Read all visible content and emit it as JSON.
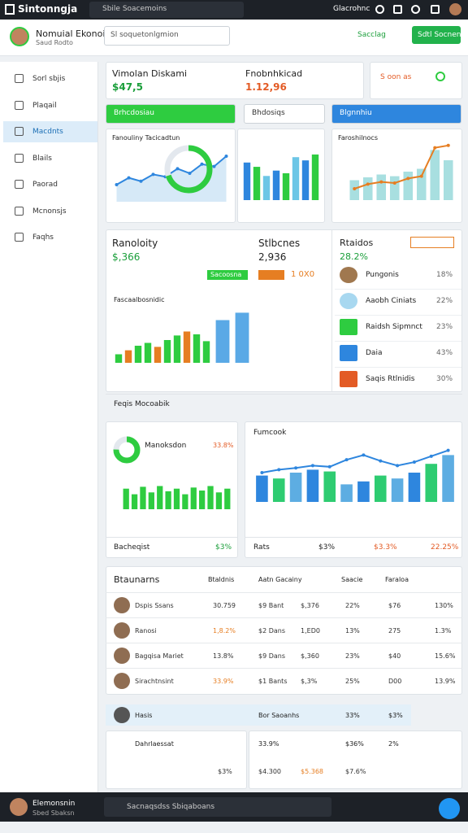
{
  "topbar": {
    "brand": "Sintonngja",
    "search": "Sbile Soacemoins",
    "user": "Glacrohnc"
  },
  "header": {
    "name": "Nomuial Ekonoin",
    "role": "Saud Rodto",
    "search": "Sl soquetonlgmion",
    "link": "Sacclag",
    "button": "Sdtl Socnen"
  },
  "sidebar": [
    "Sorl sbjis",
    "Plaqail",
    "Macdnts",
    "Blails",
    "Paorad",
    "Mcnonsjs",
    "Faqhs"
  ],
  "kpis": [
    {
      "label": "Vimolan Diskami",
      "value": "$47,5"
    },
    {
      "label": "Fnobnhkicad",
      "value": "1.12,96"
    },
    {
      "label": "S oon as"
    }
  ],
  "filters": [
    "Brhcdosiau",
    "Bhdosiqs",
    "Blgnnhiu"
  ],
  "charts": {
    "a": {
      "title": "Fanouliny Tacicadtun",
      "ylim": [
        0,
        100
      ],
      "values": [
        30,
        42,
        36,
        48,
        44,
        58,
        50,
        66,
        62,
        80
      ],
      "color": "#2e86de",
      "donut": 70,
      "donut_color": "#2ecc40"
    },
    "b": {
      "ylim": [
        0,
        100
      ],
      "values": [
        70,
        62,
        45,
        55,
        50,
        80,
        74,
        85
      ],
      "colors": [
        "#2e86de",
        "#2ecc40",
        "#6cc6e6"
      ]
    },
    "c": {
      "title": "Faroshilnocs",
      "ylim": [
        0,
        100
      ],
      "values": [
        35,
        40,
        45,
        42,
        50,
        55,
        88,
        70
      ],
      "color": "#a8dfe0",
      "line": [
        20,
        28,
        32,
        30,
        38,
        42,
        92,
        96
      ],
      "line_color": "#e67e22"
    },
    "d": {
      "title": "Fascaalbosnidic",
      "ylim": [
        0,
        100
      ],
      "values": [
        15,
        22,
        30,
        35,
        28,
        40,
        48,
        55,
        50,
        38
      ],
      "colors": [
        "#2ecc40",
        "#e67e22",
        "#2ecc40"
      ],
      "side": [
        75,
        88
      ],
      "side_color": "#5aa9e6"
    },
    "e": {
      "title": "Manoksdon",
      "ylim": [
        0,
        100
      ],
      "values": [
        55,
        40,
        60,
        45,
        62,
        48,
        55,
        40,
        58,
        50,
        62,
        45,
        55
      ],
      "color": "#2ecc40",
      "donut": 75,
      "donut_color": "#2ecc40"
    },
    "f": {
      "title": "Fumcook",
      "ylim": [
        0,
        100
      ],
      "values": [
        45,
        40,
        50,
        55,
        52,
        30,
        35,
        45,
        40,
        50,
        65,
        80
      ],
      "colors": [
        "#2e86de",
        "#2ecc71",
        "#5dade2"
      ],
      "line": [
        50,
        55,
        58,
        62,
        60,
        72,
        80,
        70,
        62,
        68,
        78,
        88
      ],
      "line_color": "#2e86de"
    }
  },
  "overview": {
    "left_title": "Ranoloity",
    "left_value": "$,366",
    "mid_title": "Stlbcnes",
    "mid_value": "2,936",
    "badge1": "Sacoosna",
    "badge2": "1 0X0",
    "list_title": "Rtaidos",
    "list_value": "28.2%",
    "footer": "Feqis Mocoabik",
    "items": [
      {
        "name": "Pungonis",
        "value": "18%"
      },
      {
        "name": "Aaobh Ciniats",
        "value": "22%"
      },
      {
        "name": "Raidsh Sipmnct",
        "value": "23%"
      },
      {
        "name": "Daia",
        "value": "43%"
      },
      {
        "name": "Saqis Rtlnidis",
        "value": "30%"
      }
    ]
  },
  "card_e": {
    "footer": "Bacheqist",
    "footer_value": "$3%",
    "pct": "33.8%"
  },
  "card_f": {
    "footer": "Rats",
    "v1": "$3%",
    "v2": "$3.3%",
    "v3": "22.25%"
  },
  "table": {
    "title": "Btaunarns",
    "columns": [
      "Btaldnis",
      "Aatn Gacainy",
      "Saacie",
      "Faraloa"
    ],
    "rows": [
      [
        "Dspis Ssans",
        "30.759",
        "$9 Bant",
        "$,376",
        "22%",
        "$76",
        "130%"
      ],
      [
        "Ranosi",
        "1,8.2%",
        "$2 Dans",
        "1,ED0",
        "13%",
        "275",
        "1.3%"
      ],
      [
        "Bagqisa Mariet",
        "13.8%",
        "$9 Dans",
        "$,360",
        "23%",
        "$40",
        "15.6%"
      ],
      [
        "Sirachtnsint",
        "33.9%",
        "$1 Bants",
        "$,3%",
        "25%",
        "D00",
        "13.9%"
      ]
    ]
  },
  "lower": {
    "row": [
      "Hasis",
      "Bor Saoanhs",
      "33%",
      "$3%"
    ],
    "card_title": "Dahrlaessat",
    "card_values": [
      "33.9%",
      "$36%",
      "2%"
    ],
    "card_values2": [
      "$3%",
      "$4.300",
      "$5.368",
      "$7.6%"
    ]
  },
  "bottombar": {
    "name": "Elemonsnin",
    "role": "Sbed Sbaksn",
    "search": "Sacnaqsdss Sbiqaboans"
  }
}
